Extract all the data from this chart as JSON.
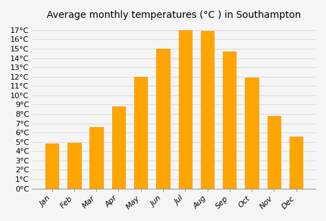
{
  "title": "Average monthly temperatures (°C ) in Southampton",
  "months": [
    "Jan",
    "Feb",
    "Mar",
    "Apr",
    "May",
    "Jun",
    "Jul",
    "Aug",
    "Sep",
    "Oct",
    "Nov",
    "Dec"
  ],
  "values": [
    4.8,
    4.9,
    6.6,
    8.8,
    12.0,
    15.0,
    17.0,
    16.9,
    14.7,
    11.9,
    7.8,
    5.6
  ],
  "bar_color": "#FFA500",
  "bar_edge_color": "#FF8C00",
  "ylim": [
    0,
    17.5
  ],
  "ytick_values": [
    0,
    1,
    2,
    3,
    4,
    5,
    6,
    7,
    8,
    9,
    10,
    11,
    12,
    13,
    14,
    15,
    16,
    17
  ],
  "background_color": "#f5f5f5",
  "grid_color": "#dddddd",
  "title_fontsize": 10,
  "tick_fontsize": 8,
  "bar_width": 0.6
}
